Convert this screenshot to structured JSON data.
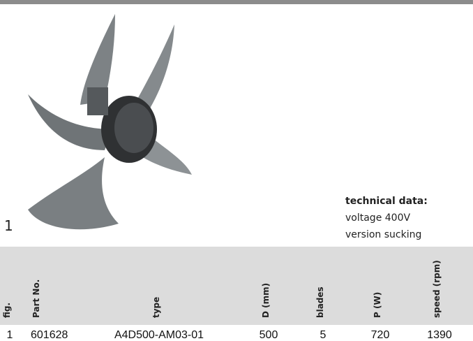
{
  "figure": {
    "label": "1"
  },
  "technical_data": {
    "title": "technical data:",
    "lines": [
      "voltage 400V",
      "version sucking"
    ]
  },
  "table": {
    "headers": [
      "fig.",
      "Part No.",
      "type",
      "D (mm)",
      "blades",
      "P (W)",
      "speed (rpm)"
    ],
    "rows": [
      [
        "1",
        "601628",
        "A4D500-AM03-01",
        "500",
        "5",
        "720",
        "1390"
      ]
    ]
  }
}
